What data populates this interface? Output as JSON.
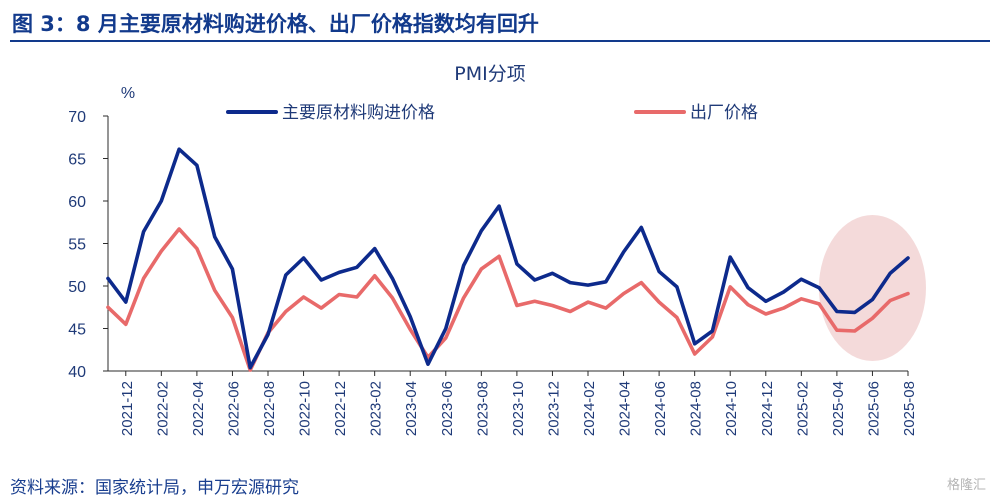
{
  "figure": {
    "title": "图 3：8 月主要原材料购进价格、出厂价格指数均有回升",
    "source": "资料来源：国家统计局，申万宏源研究",
    "watermark": "格隆汇"
  },
  "chart_data": {
    "type": "line",
    "title": "PMI分项",
    "ylabel": "%",
    "ylim": [
      40,
      70
    ],
    "yticks": [
      40,
      45,
      50,
      55,
      60,
      65,
      70
    ],
    "grid": false,
    "legend_position": "top",
    "x": [
      "2021-11",
      "2021-12",
      "2022-01",
      "2022-02",
      "2022-03",
      "2022-04",
      "2022-05",
      "2022-06",
      "2022-07",
      "2022-08",
      "2022-09",
      "2022-10",
      "2022-11",
      "2022-12",
      "2023-01",
      "2023-02",
      "2023-03",
      "2023-04",
      "2023-05",
      "2023-06",
      "2023-07",
      "2023-08",
      "2023-09",
      "2023-10",
      "2023-11",
      "2023-12",
      "2024-01",
      "2024-02",
      "2024-03",
      "2024-04",
      "2024-05",
      "2024-06",
      "2024-07",
      "2024-08",
      "2024-09",
      "2024-10",
      "2024-11",
      "2024-12",
      "2025-01",
      "2025-02",
      "2025-03",
      "2025-04",
      "2025-05",
      "2025-06",
      "2025-07",
      "2025-08"
    ],
    "x_tick_labels": [
      "2021-12",
      "2022-02",
      "2022-04",
      "2022-06",
      "2022-08",
      "2022-10",
      "2022-12",
      "2023-02",
      "2023-04",
      "2023-06",
      "2023-08",
      "2023-10",
      "2023-12",
      "2024-02",
      "2024-04",
      "2024-06",
      "2024-08",
      "2024-10",
      "2024-12",
      "2025-02",
      "2025-04",
      "2025-06",
      "2025-08"
    ],
    "series": [
      {
        "name": "主要原材料购进价格",
        "color": "#0d2a8c",
        "values": [
          50.9,
          48.1,
          56.4,
          60.0,
          66.1,
          64.2,
          55.8,
          52.0,
          40.4,
          44.3,
          51.3,
          53.3,
          50.7,
          51.6,
          52.2,
          54.4,
          50.9,
          46.4,
          40.8,
          45.0,
          52.4,
          56.5,
          59.4,
          52.6,
          50.7,
          51.5,
          50.4,
          50.1,
          50.5,
          54.0,
          56.9,
          51.7,
          49.9,
          43.2,
          44.7,
          53.4,
          49.8,
          48.2,
          49.3,
          50.8,
          49.8,
          47.0,
          46.9,
          48.4,
          51.5,
          53.3
        ]
      },
      {
        "name": "出厂价格",
        "color": "#e86a6a",
        "values": [
          47.5,
          45.5,
          50.9,
          54.1,
          56.7,
          54.4,
          49.5,
          46.3,
          40.1,
          44.5,
          47.0,
          48.7,
          47.4,
          49.0,
          48.7,
          51.2,
          48.6,
          44.9,
          41.6,
          43.9,
          48.6,
          52.0,
          53.5,
          47.7,
          48.2,
          47.7,
          47.0,
          48.1,
          47.4,
          49.1,
          50.4,
          48.1,
          46.3,
          42.0,
          44.0,
          49.9,
          47.8,
          46.7,
          47.4,
          48.5,
          47.9,
          44.8,
          44.7,
          46.2,
          48.3,
          49.1
        ]
      }
    ],
    "highlight": {
      "type": "ellipse",
      "from": "2025-04",
      "to": "2025-08",
      "color": "#f2d3d3"
    }
  }
}
